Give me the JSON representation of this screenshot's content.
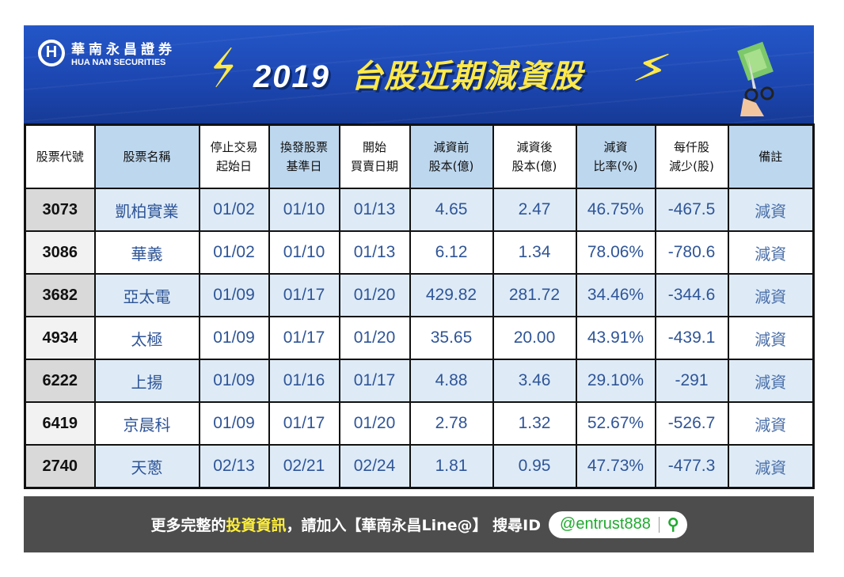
{
  "brand": {
    "logo_letter": "H",
    "name_cn": "華南永昌證券",
    "name_en": "HUA NAN SECURITIES"
  },
  "title": {
    "year": "2019",
    "text": "台股近期減資股"
  },
  "table": {
    "headers": [
      [
        "股票代號"
      ],
      [
        "股票名稱"
      ],
      [
        "停止交易",
        "起始日"
      ],
      [
        "換發股票",
        "基準日"
      ],
      [
        "開始",
        "買賣日期"
      ],
      [
        "減資前",
        "股本(億)"
      ],
      [
        "減資後",
        "股本(億)"
      ],
      [
        "減資",
        "比率(%)"
      ],
      [
        "每仟股",
        "減少(股)"
      ],
      [
        "備註"
      ]
    ],
    "rows": [
      [
        "3073",
        "凱柏實業",
        "01/02",
        "01/10",
        "01/13",
        "4.65",
        "2.47",
        "46.75%",
        "-467.5",
        "減資"
      ],
      [
        "3086",
        "華義",
        "01/02",
        "01/10",
        "01/13",
        "6.12",
        "1.34",
        "78.06%",
        "-780.6",
        "減資"
      ],
      [
        "3682",
        "亞太電",
        "01/09",
        "01/17",
        "01/20",
        "429.82",
        "281.72",
        "34.46%",
        "-344.6",
        "減資"
      ],
      [
        "4934",
        "太極",
        "01/09",
        "01/17",
        "01/20",
        "35.65",
        "20.00",
        "43.91%",
        "-439.1",
        "減資"
      ],
      [
        "6222",
        "上揚",
        "01/09",
        "01/16",
        "01/17",
        "4.88",
        "3.46",
        "29.10%",
        "-291",
        "減資"
      ],
      [
        "6419",
        "京晨科",
        "01/09",
        "01/17",
        "01/20",
        "2.78",
        "1.32",
        "52.67%",
        "-526.7",
        "減資"
      ],
      [
        "2740",
        "天蔥",
        "02/13",
        "02/21",
        "02/24",
        "1.81",
        "0.95",
        "47.73%",
        "-477.3",
        "減資"
      ]
    ]
  },
  "footer": {
    "pre": "更多完整的",
    "highlight": "投資資訊",
    "post": "，請加入【華南永昌Line@】 搜尋ID",
    "line_id": "@entrust888",
    "search_icon": "🔍"
  },
  "colors": {
    "banner": "#1c46b0",
    "header_blue": "#bdd7ee",
    "row_blue": "#deebf7",
    "text_blue": "#2f5597",
    "footer": "#4d4d4d",
    "line_green": "#1faa2e"
  }
}
